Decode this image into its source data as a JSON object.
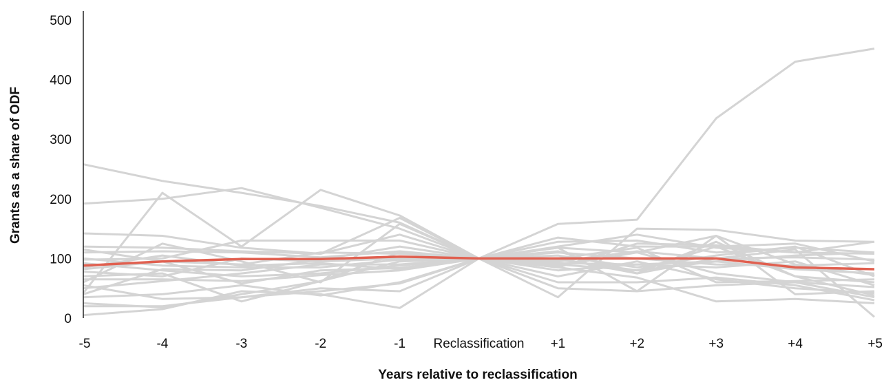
{
  "chart_data": {
    "type": "line",
    "title": "",
    "xlabel": "Years relative to reclassification",
    "ylabel": "Grants as a share of ODF",
    "categories": [
      "-5",
      "-4",
      "-3",
      "-2",
      "-1",
      "Reclassification",
      "+1",
      "+2",
      "+3",
      "+4",
      "+5"
    ],
    "x_tick_labels": [
      "-5",
      "-4",
      "-3",
      "-2",
      "-1",
      "Reclassification",
      "+1",
      "+2",
      "+3",
      "+4",
      "+5"
    ],
    "y_tick_labels": [
      "0",
      "100",
      "200",
      "300",
      "400",
      "500"
    ],
    "ylim": [
      0,
      500
    ],
    "grid": false,
    "legend": "none",
    "colors": {
      "highlight": "#e06050",
      "background_series": "#d4d4d4",
      "axis": "#222222"
    },
    "highlight_series": {
      "values": [
        88,
        95,
        99,
        99,
        103,
        100,
        100,
        100,
        100,
        85,
        82
      ]
    },
    "series": [
      {
        "values": [
          258,
          230,
          210,
          188,
          160,
          100,
          158,
          165,
          335,
          430,
          452
        ]
      },
      {
        "values": [
          192,
          200,
          218,
          185,
          150,
          100,
          120,
          140,
          118,
          110,
          128
        ]
      },
      {
        "values": [
          42,
          210,
          120,
          215,
          172,
          100,
          35,
          150,
          148,
          130,
          128
        ]
      },
      {
        "values": [
          142,
          138,
          118,
          108,
          168,
          100,
          135,
          120,
          120,
          125,
          95
        ]
      },
      {
        "values": [
          120,
          118,
          112,
          108,
          140,
          100,
          128,
          130,
          110,
          118,
          110
        ]
      },
      {
        "values": [
          60,
          125,
          95,
          60,
          158,
          100,
          118,
          110,
          138,
          90,
          72
        ]
      },
      {
        "values": [
          98,
          100,
          130,
          130,
          130,
          100,
          85,
          125,
          122,
          110,
          108
        ]
      },
      {
        "values": [
          110,
          112,
          110,
          102,
          112,
          100,
          95,
          112,
          100,
          102,
          98
        ]
      },
      {
        "values": [
          82,
          95,
          90,
          110,
          108,
          100,
          110,
          100,
          90,
          88,
          92
        ]
      },
      {
        "values": [
          70,
          75,
          28,
          62,
          110,
          100,
          100,
          75,
          128,
          70,
          60
        ]
      },
      {
        "values": [
          50,
          62,
          75,
          90,
          90,
          100,
          92,
          90,
          95,
          82,
          75
        ]
      },
      {
        "values": [
          40,
          82,
          80,
          98,
          120,
          100,
          90,
          80,
          120,
          70,
          38
        ]
      },
      {
        "values": [
          25,
          18,
          40,
          62,
          95,
          100,
          80,
          90,
          85,
          95,
          55
        ]
      },
      {
        "values": [
          55,
          32,
          35,
          45,
          58,
          100,
          88,
          110,
          75,
          60,
          52
        ]
      },
      {
        "values": [
          5,
          15,
          45,
          40,
          17,
          100,
          50,
          45,
          55,
          60,
          35
        ]
      },
      {
        "values": [
          20,
          20,
          35,
          50,
          45,
          100,
          60,
          60,
          68,
          55,
          30
        ]
      },
      {
        "values": [
          35,
          40,
          55,
          38,
          60,
          100,
          70,
          95,
          65,
          50,
          42
        ]
      },
      {
        "values": [
          92,
          80,
          70,
          75,
          88,
          100,
          112,
          75,
          100,
          115,
          2
        ]
      },
      {
        "values": [
          100,
          88,
          85,
          85,
          98,
          100,
          105,
          85,
          105,
          120,
          70
        ]
      },
      {
        "values": [
          78,
          70,
          100,
          95,
          100,
          100,
          98,
          80,
          95,
          105,
          110
        ]
      },
      {
        "values": [
          65,
          65,
          62,
          72,
          80,
          100,
          100,
          118,
          60,
          62,
          65
        ]
      },
      {
        "values": [
          115,
          95,
          58,
          80,
          84,
          100,
          85,
          68,
          28,
          32,
          25
        ]
      },
      {
        "values": [
          85,
          105,
          88,
          92,
          82,
          100,
          118,
          45,
          138,
          40,
          45
        ]
      }
    ]
  }
}
